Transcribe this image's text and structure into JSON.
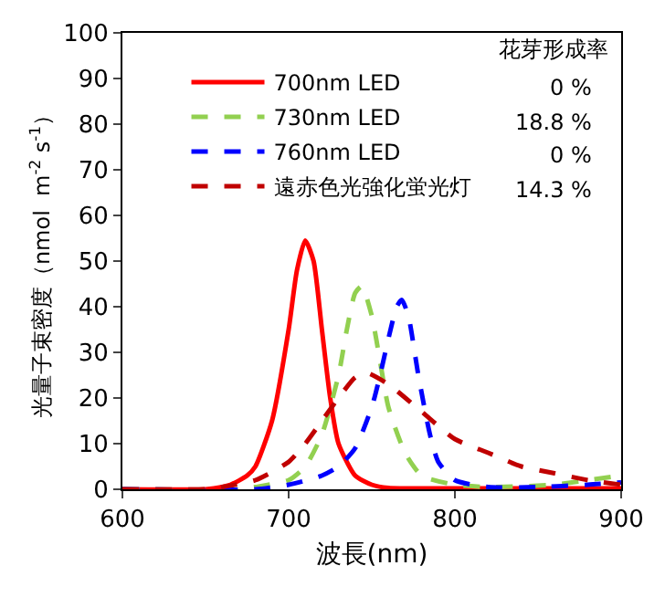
{
  "chart_data": {
    "type": "line",
    "xlabel": "波長(nm)",
    "ylabel": "光量子束密度（nmol  m$^{-2}$ s$^{-1}$）",
    "legend_title": "花芽形成率",
    "annotations": [
      "0 %",
      "18.8 %",
      "0 %",
      "14.3 %"
    ],
    "xlim": [
      600,
      900
    ],
    "xticks": [
      600,
      700,
      800,
      900
    ],
    "ylim": [
      0,
      100
    ],
    "yticks": [
      0,
      10,
      20,
      30,
      40,
      50,
      60,
      70,
      80,
      90,
      100
    ],
    "grid": false,
    "legend": "top",
    "marker": "none",
    "series": [
      {
        "name": "700nm LED",
        "color": "#ff0000",
        "line_style": "solid",
        "x": [
          600,
          650,
          655,
          665,
          675,
          680,
          690,
          700,
          705,
          710,
          715,
          720,
          725,
          730,
          740,
          750,
          760,
          800,
          900
        ],
        "values": [
          0,
          0,
          0.2,
          1,
          3,
          5,
          15,
          35,
          48,
          54.5,
          50,
          35,
          20,
          10,
          3,
          1,
          0.3,
          0.2,
          0.2
        ]
      },
      {
        "name": "730nm LED",
        "color": "#92d050",
        "line_style": "dashed",
        "x": [
          600,
          670,
          680,
          700,
          710,
          720,
          730,
          735,
          740,
          744,
          750,
          755,
          760,
          770,
          780,
          800,
          820,
          860,
          880,
          900
        ],
        "values": [
          0,
          0,
          0.5,
          2,
          5,
          12,
          25,
          35,
          43,
          44.5,
          38,
          28,
          18,
          8,
          3,
          1,
          0.5,
          1,
          2,
          3
        ]
      },
      {
        "name": "760nm LED",
        "color": "#0000ff",
        "line_style": "dashed",
        "x": [
          600,
          680,
          700,
          720,
          730,
          740,
          750,
          755,
          760,
          765,
          768,
          772,
          778,
          785,
          790,
          800,
          820,
          850,
          880,
          900
        ],
        "values": [
          0,
          0,
          1,
          3,
          5,
          9,
          18,
          25,
          33,
          40,
          41.5,
          38,
          25,
          12,
          6,
          2,
          0.5,
          0.5,
          1,
          1.5
        ]
      },
      {
        "name": "遠赤色光強化蛍光灯",
        "color": "#c00000",
        "line_style": "dashed",
        "x": [
          600,
          650,
          660,
          680,
          700,
          710,
          720,
          730,
          740,
          747,
          760,
          780,
          800,
          820,
          840,
          860,
          880,
          900
        ],
        "values": [
          0,
          0,
          0.5,
          2,
          6,
          10,
          15,
          20,
          24.5,
          25.5,
          23,
          17,
          11,
          8,
          5,
          3.5,
          2,
          1
        ]
      }
    ]
  }
}
